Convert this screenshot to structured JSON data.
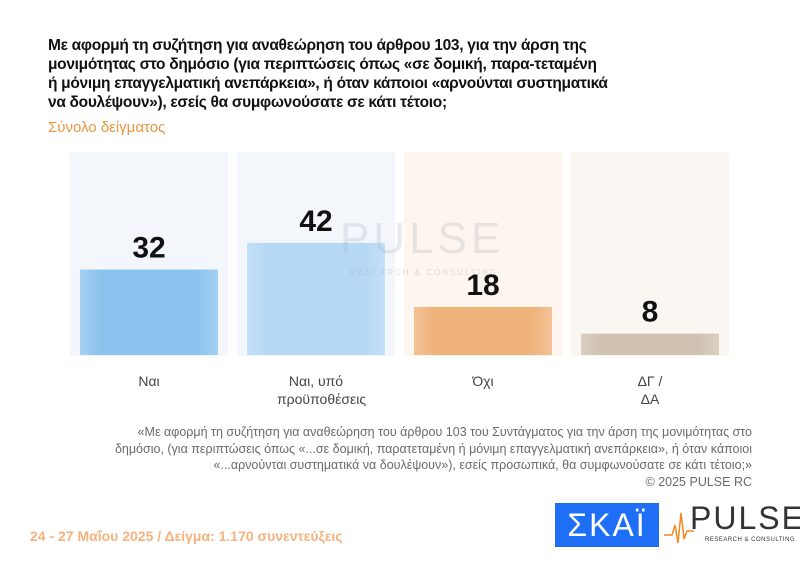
{
  "header": {
    "title": "Με αφορμή τη συζήτηση για αναθεώρηση του άρθρου 103, για την άρση της μονιμότητας στο δημόσιο (για περιπτώσεις όπως «σε δομική, παρα-τεταμένη ή μόνιμη επαγγελματική ανεπάρκεια», ή όταν κάποιοι «αρνούνται συστηματικά να δουλέψουν»), εσείς θα συμφωνούσατε σε κάτι τέτοιο;",
    "subtitle": "Σύνολο δείγματος"
  },
  "chart_data": {
    "type": "bar",
    "categories": [
      "Ναι",
      "Ναι, υπό προϋποθέσεις",
      "Όχι",
      "ΔΓ / ΔΑ"
    ],
    "values": [
      32,
      42,
      18,
      8
    ],
    "colors": [
      "#8cc3ee",
      "#b5d8f5",
      "#efb27a",
      "#cfc2b1"
    ],
    "panel_colors": [
      "#f3f7fc",
      "#f3f7fc",
      "#fdf5ee",
      "#faf6f2"
    ],
    "ylim": [
      0,
      76
    ],
    "grid": false
  },
  "watermark": {
    "text": "PULSE",
    "sub": "RESEARCH & CONSULTING"
  },
  "note": {
    "text": "«Με αφορμή τη συζήτηση για αναθεώρηση του άρθρου 103 του Συντάγματος για την άρση της μονιμότητας στο δημόσιο, (για περιπτώσεις όπως «...σε δομική, παρατεταμένη ή μόνιμη επαγγελματική ανεπάρκεια», ή όταν κάποιοι «...αρνούνται συστηματικά να δουλέψουν»), εσείς προσωπικά, θα συμφωνούσατε σε κάτι τέτοιο;»",
    "copyright": "©  2025  PULSE RC"
  },
  "footer": {
    "text": "24 - 27 Μαΐου 2025  /  Δείγμα:  1.170 συνεντεύξεις"
  },
  "logos": {
    "skai": "ΣΚΑΪ",
    "pulse": "PULSE",
    "pulse_sub": "RESEARCH & CONSULTING"
  }
}
